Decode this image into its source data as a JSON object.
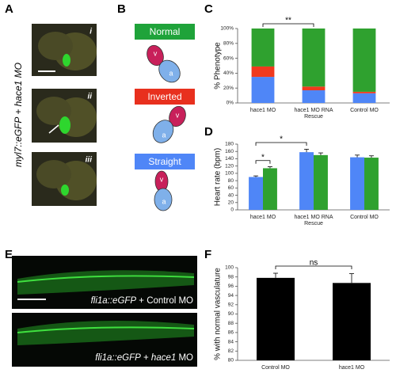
{
  "panels": {
    "a": {
      "label": "A",
      "side_label": "myl7::eGFP + hace1 MO",
      "images": [
        "i",
        "ii",
        "iii"
      ]
    },
    "b": {
      "label": "B",
      "boxes": [
        "Normal",
        "Inverted",
        "Straight"
      ],
      "chambers": [
        "v",
        "a"
      ]
    },
    "c": {
      "label": "C"
    },
    "d": {
      "label": "D"
    },
    "e": {
      "label": "E",
      "captions": [
        [
          "fli1a::eGFP",
          "+ Control MO"
        ],
        [
          "fli1a::eGFP",
          "+",
          "hace1",
          "MO"
        ]
      ]
    },
    "f": {
      "label": "F"
    }
  },
  "chart_data": [
    {
      "type": "stacked_bar",
      "ylabel": "% Phenotype",
      "categories": [
        "hace1 MO",
        "hace1 MO RNA Rescue",
        "Control MO"
      ],
      "series": [
        {
          "color": "#4f86f7",
          "values": [
            35,
            17,
            13
          ]
        },
        {
          "color": "#f03a1e",
          "values": [
            14,
            5,
            2
          ]
        },
        {
          "color": "#2fa12f",
          "values": [
            51,
            78,
            85
          ]
        }
      ],
      "ylim": [
        0,
        100
      ],
      "yticks": [
        {
          "value": 0,
          "label": "0%"
        },
        {
          "value": 20,
          "label": "20%"
        },
        {
          "value": 40,
          "label": "40%"
        },
        {
          "value": 60,
          "label": "60%"
        },
        {
          "value": 80,
          "label": "80%"
        },
        {
          "value": 100,
          "label": "100%"
        }
      ],
      "annotations": [
        "**"
      ],
      "grid": false
    },
    {
      "type": "grouped_bar",
      "ylabel": "Heart rate (bpm)",
      "categories": [
        "hace1 MO",
        "hace1 MO RNA Rescue",
        "Control MO"
      ],
      "series": [
        {
          "color": "#4f86f7",
          "values": [
            90,
            158,
            144
          ],
          "errors": [
            3,
            8,
            6
          ]
        },
        {
          "color": "#2fa12f",
          "values": [
            114,
            150,
            143
          ],
          "errors": [
            4,
            6,
            5
          ]
        }
      ],
      "ylim": [
        0,
        180
      ],
      "yticks": [
        0,
        20,
        40,
        60,
        80,
        100,
        120,
        140,
        160,
        180
      ],
      "annotations": [
        "*",
        "*"
      ],
      "grid": false
    },
    {
      "type": "bar",
      "ylabel": "% with normal vasculature",
      "categories": [
        "Control MO",
        "hace1 MO"
      ],
      "values": [
        97.8,
        96.7
      ],
      "errors": [
        1,
        2
      ],
      "color": "#000000",
      "ylim": [
        80,
        100
      ],
      "yticks": [
        80,
        82,
        84,
        86,
        88,
        90,
        92,
        94,
        96,
        98,
        100
      ],
      "annotations": [
        "ns"
      ],
      "grid": false
    }
  ]
}
